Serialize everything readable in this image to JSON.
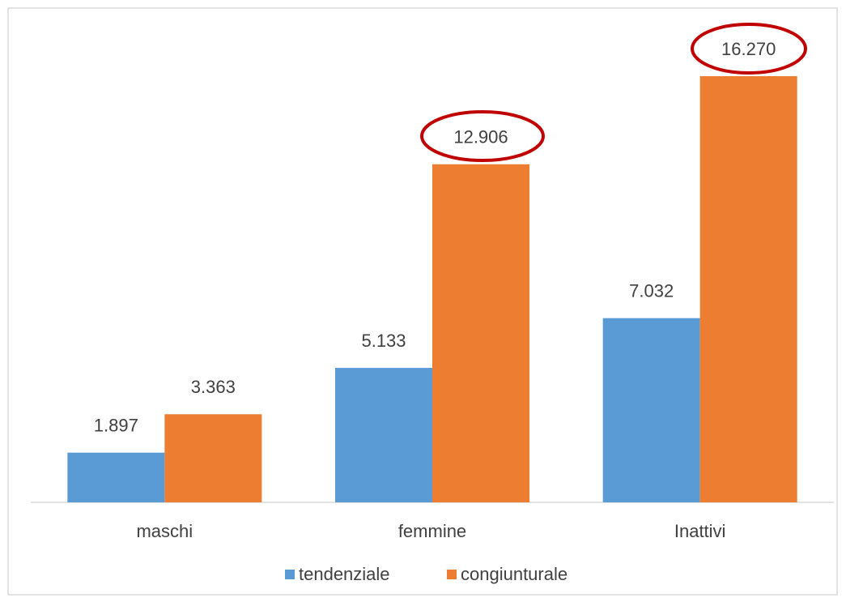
{
  "chart_data": {
    "type": "bar",
    "categories": [
      "maschi",
      "femmine",
      "Inattivi"
    ],
    "series": [
      {
        "name": "tendenziale",
        "color": "#5b9bd5",
        "values": [
          1897,
          5133,
          7032
        ],
        "value_labels": [
          "1.897",
          "5.133",
          "7.032"
        ]
      },
      {
        "name": "congiunturale",
        "color": "#ed7d31",
        "values": [
          3363,
          12906,
          16270
        ],
        "value_labels": [
          "3.363",
          "12.906",
          "16.270"
        ]
      }
    ],
    "legend": "bottom"
  }
}
